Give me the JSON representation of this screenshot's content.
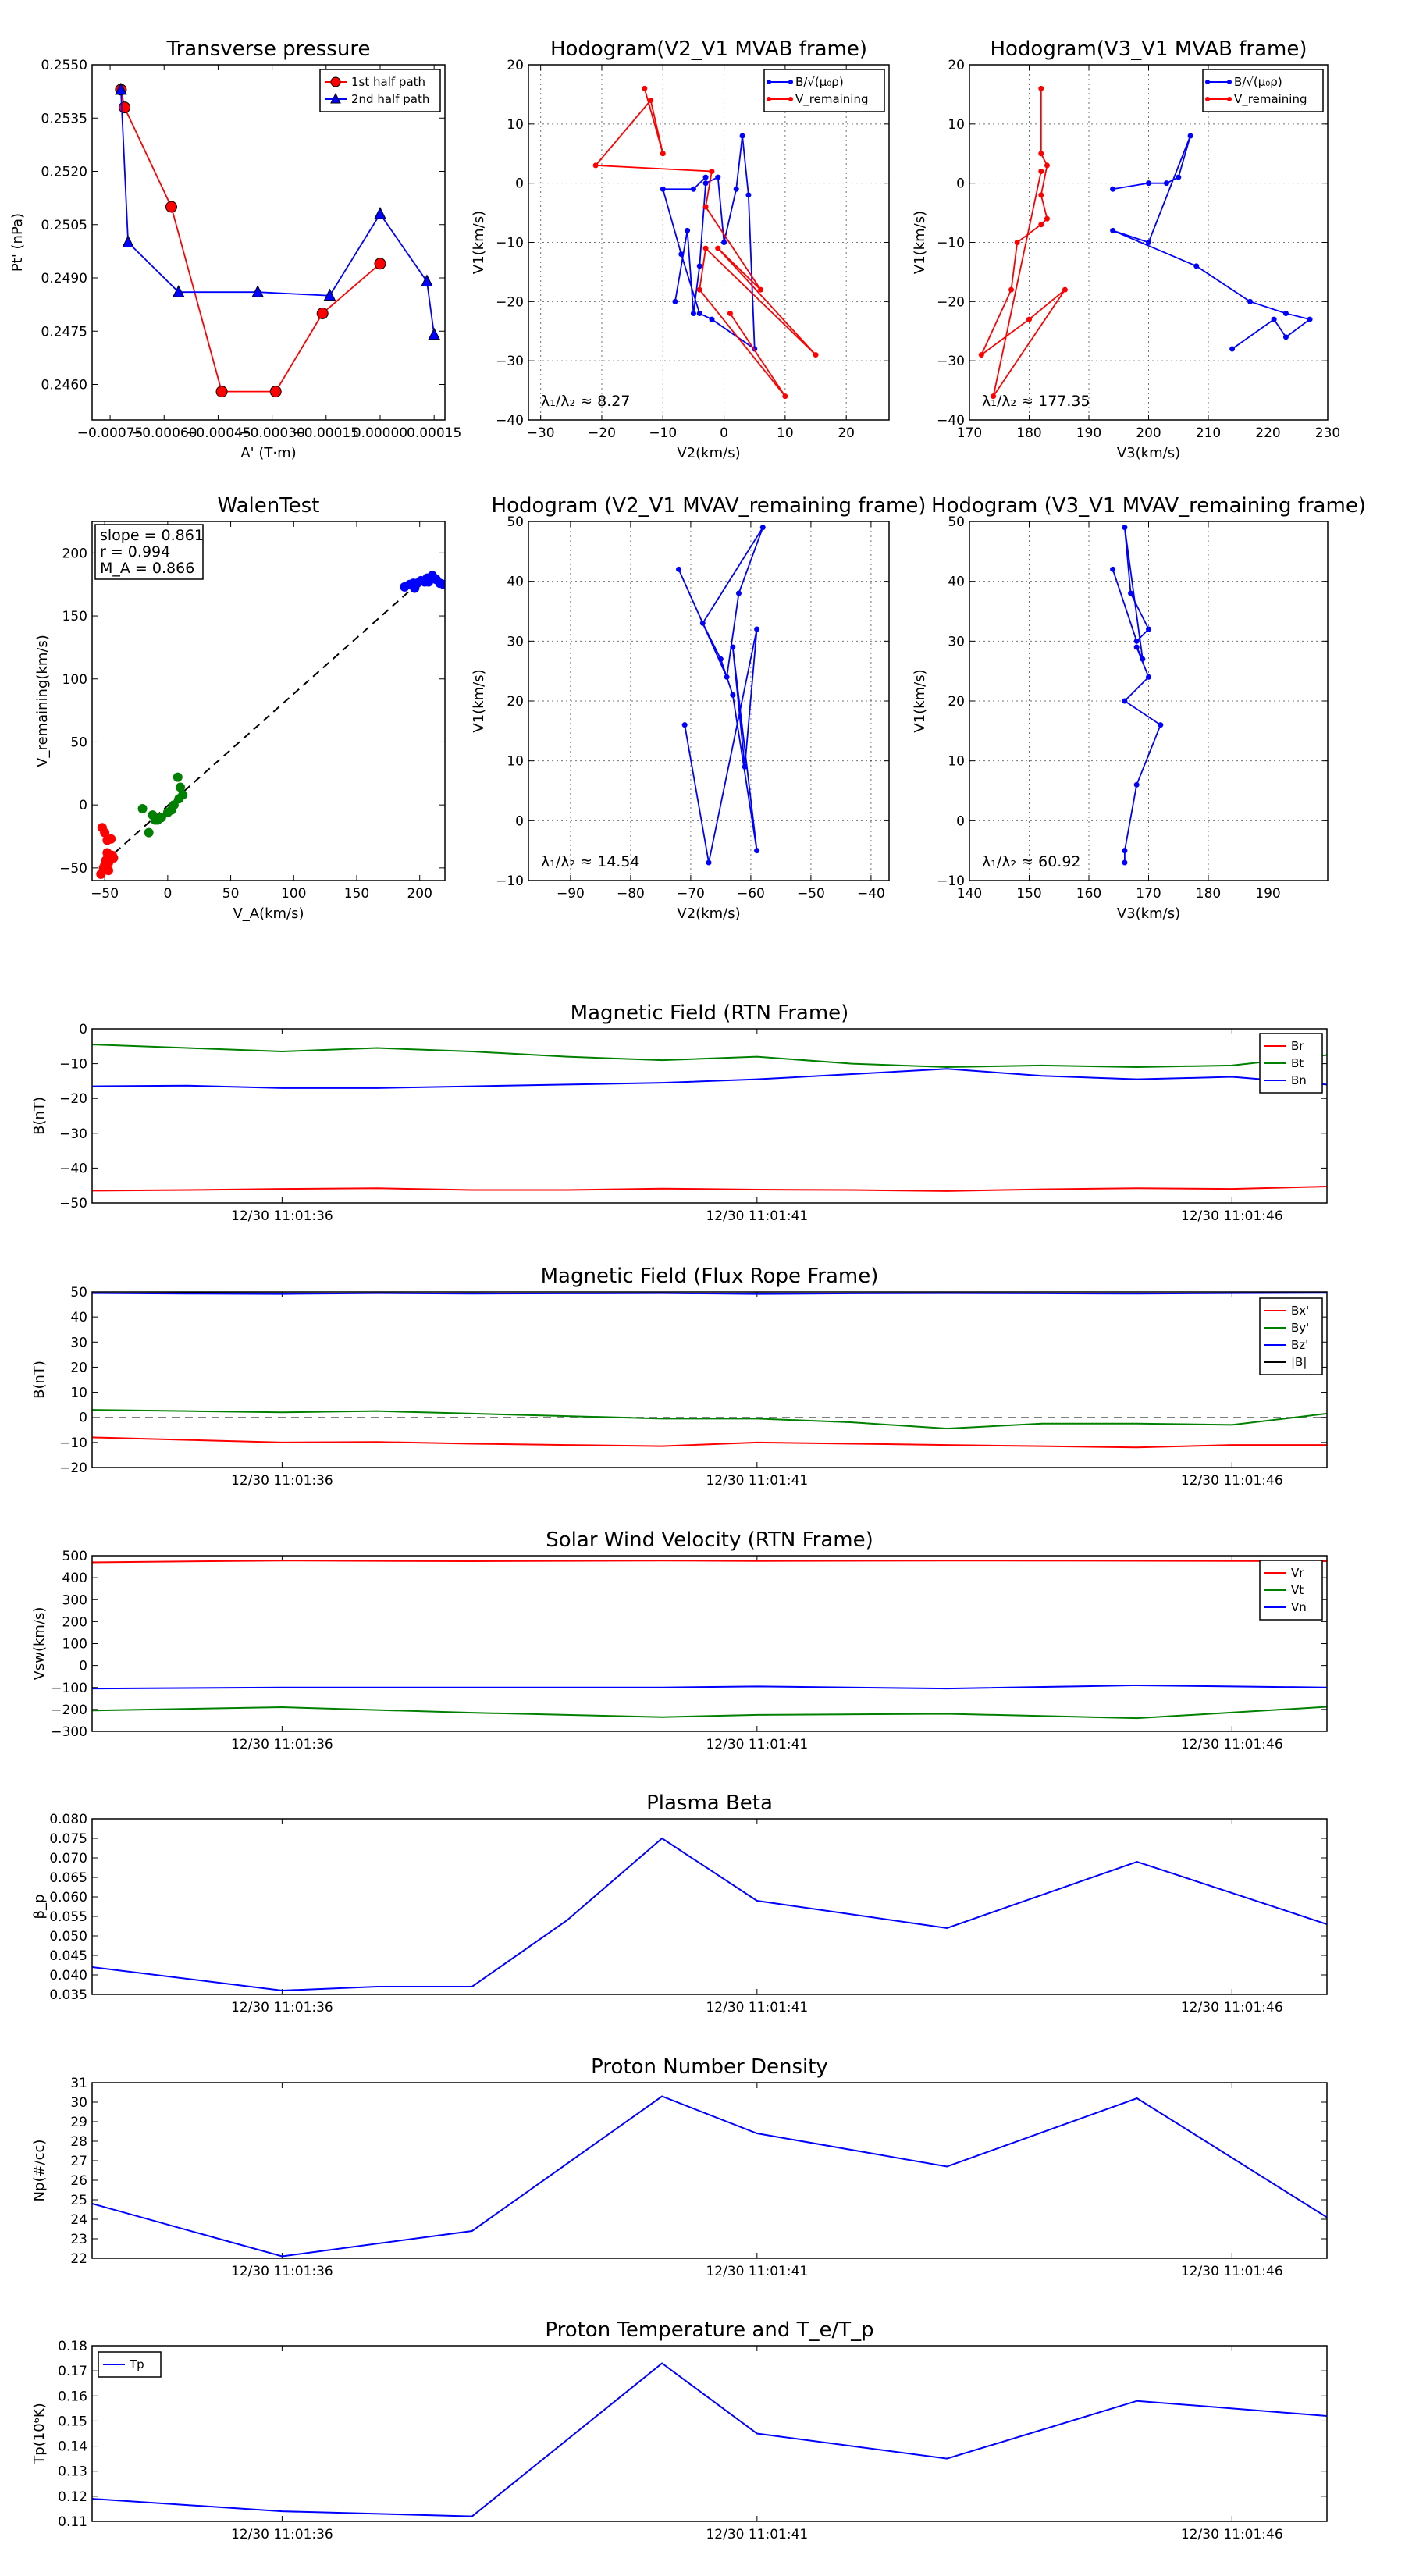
{
  "chart_data": [
    {
      "id": "transverse",
      "type": "line",
      "title": "Transverse pressure",
      "xlabel": "A' (T·m)",
      "ylabel": "Pt' (nPa)",
      "xlim": [
        -0.0008,
        0.00018
      ],
      "ylim": [
        0.245,
        0.255
      ],
      "xticks": [
        -0.00075,
        -0.0006,
        -0.00045,
        -0.0003,
        -0.00015,
        0.0,
        0.00015
      ],
      "xticklabels": [
        "−0.00075",
        "−0.00060",
        "−0.00045",
        "−0.00030",
        "−0.00015",
        "0.00000",
        "0.00015"
      ],
      "yticks": [
        0.246,
        0.2475,
        0.249,
        0.2505,
        0.252,
        0.2535,
        0.255
      ],
      "yticklabels": [
        "0.2460",
        "0.2475",
        "0.2490",
        "0.2505",
        "0.2520",
        "0.2535",
        "0.2550"
      ],
      "grid": false,
      "legend_position": "top-right",
      "series": [
        {
          "name": "1st half path",
          "color": "#ff0000",
          "marker": "circle",
          "x": [
            -0.00072,
            -0.00071,
            -0.00058,
            -0.00044,
            -0.00029,
            -0.00016,
            0.0
          ],
          "y": [
            0.2543,
            0.2538,
            0.251,
            0.2458,
            0.2458,
            0.248,
            0.2494
          ]
        },
        {
          "name": "2nd half path",
          "color": "#0000ff",
          "marker": "triangle",
          "x": [
            -0.00072,
            -0.0007,
            -0.00056,
            -0.00034,
            -0.00014,
            0.0,
            0.00013,
            0.00015
          ],
          "y": [
            0.2543,
            0.25,
            0.2486,
            0.2486,
            0.2485,
            0.2508,
            0.2489,
            0.2474
          ]
        }
      ]
    },
    {
      "id": "hodo_mvab_v2",
      "type": "line",
      "title": "Hodogram(V2_V1 MVAB frame)",
      "xlabel": "V2(km/s)",
      "ylabel": "V1(km/s)",
      "xlim": [
        -32,
        27
      ],
      "ylim": [
        -40,
        20
      ],
      "xticks": [
        -30,
        -20,
        -10,
        0,
        10,
        20
      ],
      "yticks": [
        -40,
        -30,
        -20,
        -10,
        0,
        10,
        20
      ],
      "grid": true,
      "legend_position": "top-right",
      "annotation": "λ₁/λ₂ ≈ 8.27",
      "series": [
        {
          "name": "B/√(μ₀ρ)",
          "color": "#0000ff",
          "x": [
            -8,
            -6,
            -5,
            -4,
            -3,
            -1,
            0,
            2,
            3,
            4,
            5,
            -2,
            -4,
            -7,
            -10,
            -5,
            -3
          ],
          "y": [
            -20,
            -8,
            -22,
            -14,
            0,
            1,
            -10,
            -1,
            8,
            -2,
            -28,
            -23,
            -22,
            -12,
            -1,
            -1,
            1
          ]
        },
        {
          "name": "V_remaining",
          "color": "#ff0000",
          "x": [
            -13,
            -10,
            -12,
            -21,
            -2,
            -3,
            6,
            -1,
            15,
            -3,
            -4,
            10,
            1
          ],
          "y": [
            16,
            5,
            14,
            3,
            2,
            -4,
            -18,
            -11,
            -29,
            -11,
            -18,
            -36,
            -22
          ]
        }
      ]
    },
    {
      "id": "hodo_mvab_v3",
      "type": "line",
      "title": "Hodogram(V3_V1 MVAB frame)",
      "xlabel": "V3(km/s)",
      "ylabel": "V1(km/s)",
      "xlim": [
        170,
        230
      ],
      "ylim": [
        -40,
        20
      ],
      "xticks": [
        170,
        180,
        190,
        200,
        210,
        220,
        230
      ],
      "yticks": [
        -40,
        -30,
        -20,
        -10,
        0,
        10,
        20
      ],
      "grid": true,
      "legend_position": "top-right",
      "annotation": "λ₁/λ₂ ≈ 177.35",
      "series": [
        {
          "name": "B/√(μ₀ρ)",
          "color": "#0000ff",
          "x": [
            194,
            200,
            203,
            205,
            207,
            200,
            194,
            208,
            217,
            223,
            227,
            223,
            221,
            214
          ],
          "y": [
            -1,
            0,
            0,
            1,
            8,
            -10,
            -8,
            -14,
            -20,
            -22,
            -23,
            -26,
            -23,
            -28
          ]
        },
        {
          "name": "V_remaining",
          "color": "#ff0000",
          "x": [
            182,
            182,
            183,
            182,
            183,
            182,
            178,
            177,
            172,
            180,
            186,
            174,
            182
          ],
          "y": [
            16,
            5,
            3,
            -2,
            -6,
            -7,
            -10,
            -18,
            -29,
            -23,
            -18,
            -36,
            2
          ]
        }
      ]
    },
    {
      "id": "walen",
      "type": "scatter",
      "title": "WalenTest",
      "xlabel": "V_A(km/s)",
      "ylabel": "V_remaining(km/s)",
      "xlim": [
        -60,
        220
      ],
      "ylim": [
        -60,
        225
      ],
      "xticks": [
        -50,
        0,
        50,
        100,
        150,
        200
      ],
      "yticks": [
        -50,
        0,
        50,
        100,
        150,
        200
      ],
      "grid": false,
      "annotation_lines": [
        "slope = 0.861",
        "r = 0.994",
        "M_A = 0.866"
      ],
      "fit_line": {
        "x": [
          -50,
          200
        ],
        "y": [
          -45,
          177
        ]
      },
      "series": [
        {
          "name": "red",
          "color": "#ff0000",
          "x": [
            -52,
            -50,
            -48,
            -46,
            -44,
            -47,
            -49,
            -51,
            -53,
            -48,
            -45,
            -43,
            -50,
            -47
          ],
          "y": [
            -18,
            -22,
            -28,
            -42,
            -40,
            -46,
            -44,
            -50,
            -55,
            -38,
            -27,
            -42,
            -48,
            -52
          ]
        },
        {
          "name": "green",
          "color": "#008000",
          "x": [
            -20,
            -12,
            -8,
            -5,
            0,
            5,
            8,
            10,
            12,
            -15,
            -10,
            3,
            9
          ],
          "y": [
            -3,
            -8,
            -12,
            -10,
            -6,
            0,
            22,
            14,
            8,
            -22,
            -12,
            -4,
            5
          ]
        },
        {
          "name": "blue",
          "color": "#0000ff",
          "x": [
            188,
            192,
            195,
            198,
            201,
            204,
            207,
            210,
            213,
            216,
            219,
            196,
            206
          ],
          "y": [
            173,
            175,
            176,
            176,
            178,
            177,
            177,
            182,
            179,
            176,
            175,
            172,
            180
          ]
        }
      ]
    },
    {
      "id": "hodo_mvav_v2",
      "type": "line",
      "title": "Hodogram (V2_V1 MVAV_remaining frame)",
      "xlabel": "V2(km/s)",
      "ylabel": "V1(km/s)",
      "xlim": [
        -97,
        -37
      ],
      "ylim": [
        -10,
        50
      ],
      "xticks": [
        -90,
        -80,
        -70,
        -60,
        -50,
        -40
      ],
      "yticks": [
        -10,
        0,
        10,
        20,
        30,
        40,
        50
      ],
      "grid": true,
      "annotation": "λ₁/λ₂ ≈ 14.54",
      "series": [
        {
          "name": "",
          "color": "#0000ff",
          "x": [
            -72,
            -64,
            -62,
            -58,
            -68,
            -65,
            -63,
            -59,
            -63,
            -61,
            -59,
            -67,
            -71
          ],
          "y": [
            42,
            24,
            38,
            49,
            33,
            27,
            21,
            -5,
            29,
            9,
            32,
            -7,
            16
          ]
        }
      ]
    },
    {
      "id": "hodo_mvav_v3",
      "type": "line",
      "title": "Hodogram (V3_V1 MVAV_remaining frame)",
      "xlabel": "V3(km/s)",
      "ylabel": "V1(km/s)",
      "xlim": [
        140,
        200
      ],
      "ylim": [
        -10,
        50
      ],
      "xticks": [
        140,
        150,
        160,
        170,
        180,
        190
      ],
      "yticks": [
        -10,
        0,
        10,
        20,
        30,
        40,
        50
      ],
      "grid": true,
      "annotation": "λ₁/λ₂ ≈ 60.92",
      "series": [
        {
          "name": "",
          "color": "#0000ff",
          "x": [
            164,
            168,
            170,
            167,
            166,
            169,
            168,
            170,
            166,
            172,
            168,
            166,
            166
          ],
          "y": [
            42,
            30,
            32,
            38,
            49,
            27,
            29,
            24,
            20,
            16,
            6,
            -5,
            -7
          ]
        }
      ]
    },
    {
      "id": "mag_rtn",
      "type": "line",
      "title": "Magnetic Field (RTN Frame)",
      "xlabel": "",
      "ylabel": "B(nT)",
      "xlim": [
        0,
        13
      ],
      "ylim": [
        -50,
        0
      ],
      "xtick_positions": [
        2,
        7,
        12
      ],
      "xticklabels": [
        "12/30 11:01:36",
        "12/30 11:01:41",
        "12/30 11:01:46"
      ],
      "yticks": [
        -50,
        -40,
        -30,
        -20,
        -10,
        0
      ],
      "grid": false,
      "legend_position": "top-right",
      "x": [
        0,
        1,
        2,
        3,
        4,
        5,
        6,
        7,
        8,
        9,
        10,
        11,
        12,
        13
      ],
      "series": [
        {
          "name": "Br",
          "color": "#ff0000",
          "values": [
            -46.5,
            -46.3,
            -46,
            -45.8,
            -46.3,
            -46.3,
            -45.9,
            -46.2,
            -46.3,
            -46.6,
            -46.1,
            -45.8,
            -46,
            -45.3
          ]
        },
        {
          "name": "Bt",
          "color": "#008000",
          "values": [
            -4.5,
            -5.5,
            -6.5,
            -5.5,
            -6.5,
            -8,
            -9,
            -8,
            -10,
            -11,
            -10.5,
            -11,
            -10.5,
            -7.5
          ]
        },
        {
          "name": "Bn",
          "color": "#0000ff",
          "values": [
            -16.5,
            -16.3,
            -17,
            -17,
            -16.5,
            -16,
            -15.5,
            -14.5,
            -13,
            -11.5,
            -13.5,
            -14.5,
            -13.8,
            -16
          ]
        }
      ]
    },
    {
      "id": "mag_fr",
      "type": "line",
      "title": "Magnetic Field (Flux Rope Frame)",
      "xlabel": "",
      "ylabel": "B(nT)",
      "xlim": [
        0,
        13
      ],
      "ylim": [
        -20,
        50
      ],
      "xtick_positions": [
        2,
        7,
        12
      ],
      "xticklabels": [
        "12/30 11:01:36",
        "12/30 11:01:41",
        "12/30 11:01:46"
      ],
      "yticks": [
        -20,
        -10,
        0,
        10,
        20,
        30,
        40,
        50
      ],
      "grid": false,
      "legend_position": "right",
      "zero_line": true,
      "x": [
        0,
        1,
        2,
        3,
        4,
        5,
        6,
        7,
        8,
        9,
        10,
        11,
        12,
        13
      ],
      "series": [
        {
          "name": "Bx'",
          "color": "#ff0000",
          "values": [
            -8,
            -9,
            -10,
            -9.8,
            -10.5,
            -11,
            -11.5,
            -10,
            -10.5,
            -11,
            -11.5,
            -12,
            -11,
            -11
          ]
        },
        {
          "name": "By'",
          "color": "#008000",
          "values": [
            3,
            2.5,
            2,
            2.5,
            1.5,
            0.5,
            -0.5,
            -0.5,
            -2,
            -4.5,
            -2.5,
            -2.5,
            -3,
            1.5
          ]
        },
        {
          "name": "Bz'",
          "color": "#0000ff",
          "values": [
            49.5,
            49.3,
            49.2,
            49.5,
            49.3,
            49.4,
            49.5,
            49.2,
            49.4,
            49.5,
            49.4,
            49.3,
            49.5,
            49.6
          ]
        },
        {
          "name": "|B|",
          "color": "#000000",
          "values": [
            50.2,
            50,
            50.1,
            50.2,
            50.1,
            50.3,
            50.4,
            50.1,
            50.3,
            50.5,
            50.4,
            50.2,
            50.4,
            50.5
          ]
        }
      ]
    },
    {
      "id": "sw_vel",
      "type": "line",
      "title": "Solar Wind Velocity (RTN Frame)",
      "xlabel": "",
      "ylabel": "Vsw(km/s)",
      "xlim": [
        0,
        13
      ],
      "ylim": [
        -300,
        500
      ],
      "xtick_positions": [
        2,
        7,
        12
      ],
      "xticklabels": [
        "12/30 11:01:36",
        "12/30 11:01:41",
        "12/30 11:01:46"
      ],
      "yticks": [
        -300,
        -200,
        -100,
        0,
        100,
        200,
        300,
        400,
        500
      ],
      "grid": false,
      "legend_position": "top-right",
      "x": [
        0,
        2,
        4,
        6,
        7,
        9,
        11,
        13
      ],
      "series": [
        {
          "name": "Vr",
          "color": "#ff0000",
          "values": [
            470,
            478,
            475,
            478,
            476,
            478,
            477,
            475
          ]
        },
        {
          "name": "Vt",
          "color": "#008000",
          "values": [
            -205,
            -190,
            -215,
            -235,
            -225,
            -220,
            -240,
            -188
          ]
        },
        {
          "name": "Vn",
          "color": "#0000ff",
          "values": [
            -105,
            -100,
            -100,
            -100,
            -95,
            -105,
            -90,
            -100
          ]
        }
      ]
    },
    {
      "id": "beta",
      "type": "line",
      "title": "Plasma Beta",
      "xlabel": "",
      "ylabel": "β_p",
      "xlim": [
        0,
        13
      ],
      "ylim": [
        0.035,
        0.08
      ],
      "xtick_positions": [
        2,
        7,
        12
      ],
      "xticklabels": [
        "12/30 11:01:36",
        "12/30 11:01:41",
        "12/30 11:01:46"
      ],
      "yticks": [
        0.035,
        0.04,
        0.045,
        0.05,
        0.055,
        0.06,
        0.065,
        0.07,
        0.075,
        0.08
      ],
      "yticklabels": [
        "0.035",
        "0.040",
        "0.045",
        "0.050",
        "0.055",
        "0.060",
        "0.065",
        "0.070",
        "0.075",
        "0.080"
      ],
      "grid": false,
      "x": [
        0,
        2,
        3,
        4,
        5,
        6,
        7,
        9,
        11,
        13
      ],
      "series": [
        {
          "name": "beta",
          "color": "#0000ff",
          "values": [
            0.042,
            0.036,
            0.037,
            0.037,
            0.054,
            0.075,
            0.059,
            0.052,
            0.069,
            0.053
          ]
        }
      ]
    },
    {
      "id": "density",
      "type": "line",
      "title": "Proton Number Density",
      "xlabel": "",
      "ylabel": "Np(#/cc)",
      "xlim": [
        0,
        13
      ],
      "ylim": [
        22,
        31
      ],
      "xtick_positions": [
        2,
        7,
        12
      ],
      "xticklabels": [
        "12/30 11:01:36",
        "12/30 11:01:41",
        "12/30 11:01:46"
      ],
      "yticks": [
        22,
        23,
        24,
        25,
        26,
        27,
        28,
        29,
        30,
        31
      ],
      "grid": false,
      "x": [
        0,
        2,
        4,
        6,
        7,
        9,
        11,
        13
      ],
      "series": [
        {
          "name": "Np",
          "color": "#0000ff",
          "values": [
            24.8,
            22.1,
            23.4,
            30.3,
            28.4,
            26.7,
            30.2,
            24.1
          ]
        }
      ]
    },
    {
      "id": "temperature",
      "type": "line",
      "title": "Proton Temperature and T_e/T_p",
      "xlabel": "",
      "ylabel": "Tp(10⁶K)",
      "xlim": [
        0,
        13
      ],
      "ylim": [
        0.11,
        0.18
      ],
      "xtick_positions": [
        2,
        7,
        12
      ],
      "xticklabels": [
        "12/30 11:01:36",
        "12/30 11:01:41",
        "12/30 11:01:46"
      ],
      "yticks": [
        0.11,
        0.12,
        0.13,
        0.14,
        0.15,
        0.16,
        0.17,
        0.18
      ],
      "grid": false,
      "legend_position": "top-left",
      "x": [
        0,
        2,
        4,
        6,
        7,
        9,
        11,
        13
      ],
      "series": [
        {
          "name": "Tp",
          "color": "#0000ff",
          "values": [
            0.119,
            0.114,
            0.112,
            0.173,
            0.145,
            0.135,
            0.158,
            0.152
          ]
        }
      ]
    }
  ]
}
